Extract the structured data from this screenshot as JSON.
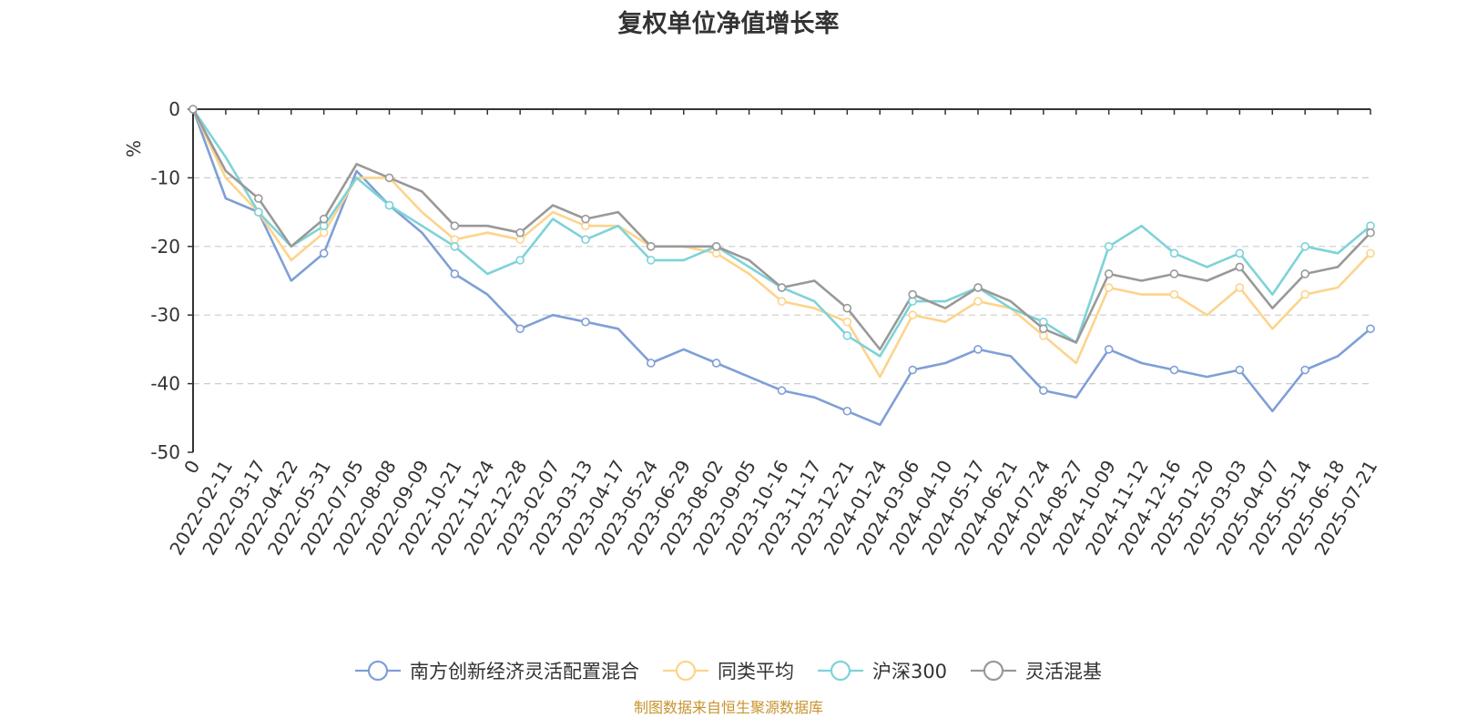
{
  "title": "复权单位净值增长率",
  "source_note": "制图数据来自恒生聚源数据库",
  "chart_data": {
    "type": "line",
    "title": "复权单位净值增长率",
    "ylabel": "%",
    "ylim": [
      -50,
      0
    ],
    "yticks": [
      0,
      -10,
      -20,
      -30,
      -40,
      -50
    ],
    "grid": "horizontal dashed",
    "legend_position": "bottom",
    "x_tick_labels": [
      "0",
      "2022-02-11",
      "2022-03-17",
      "2022-04-22",
      "2022-05-31",
      "2022-07-05",
      "2022-08-08",
      "2022-09-09",
      "2022-10-21",
      "2022-11-24",
      "2022-12-28",
      "2023-02-07",
      "2023-03-13",
      "2023-04-17",
      "2023-05-24",
      "2023-06-29",
      "2023-08-02",
      "2023-09-05",
      "2023-10-16",
      "2023-11-17",
      "2023-12-21",
      "2024-01-24",
      "2024-03-06",
      "2024-04-10",
      "2024-05-17",
      "2024-06-21",
      "2024-07-24",
      "2024-08-27",
      "2024-10-09",
      "2024-11-12",
      "2024-12-16",
      "2025-01-20",
      "2025-03-03",
      "2025-04-07",
      "2025-05-14",
      "2025-06-18",
      "2025-07-21"
    ],
    "x": [
      0,
      1,
      2,
      3,
      4,
      5,
      6,
      7,
      8,
      9,
      10,
      11,
      12,
      13,
      14,
      15,
      16,
      17,
      18,
      19,
      20,
      21,
      22,
      23,
      24,
      25,
      26,
      27,
      28,
      29,
      30,
      31,
      32,
      33,
      34,
      35,
      36
    ],
    "series": [
      {
        "name": "南方创新经济灵活配置混合",
        "color": "#7f9fd6",
        "values": [
          0,
          -13,
          -15,
          -25,
          -21,
          -9,
          -14,
          -18,
          -24,
          -27,
          -32,
          -30,
          -31,
          -32,
          -37,
          -35,
          -37,
          -39,
          -41,
          -42,
          -44,
          -46,
          -38,
          -37,
          -35,
          -36,
          -41,
          -42,
          -35,
          -37,
          -38,
          -39,
          -38,
          -44,
          -38,
          -36,
          -32
        ]
      },
      {
        "name": "同类平均",
        "color": "#fcd48c",
        "values": [
          0,
          -10,
          -15,
          -22,
          -18,
          -10,
          -10,
          -15,
          -19,
          -18,
          -19,
          -15,
          -17,
          -17,
          -20,
          -20,
          -21,
          -24,
          -28,
          -29,
          -31,
          -39,
          -30,
          -31,
          -28,
          -29,
          -33,
          -37,
          -26,
          -27,
          -27,
          -30,
          -26,
          -32,
          -27,
          -26,
          -21
        ]
      },
      {
        "name": "沪深300",
        "color": "#7dd3d8",
        "values": [
          0,
          -7,
          -15,
          -20,
          -17,
          -10,
          -14,
          -17,
          -20,
          -24,
          -22,
          -16,
          -19,
          -17,
          -22,
          -22,
          -20,
          -23,
          -26,
          -28,
          -33,
          -36,
          -28,
          -28,
          -26,
          -29,
          -31,
          -34,
          -20,
          -17,
          -21,
          -23,
          -21,
          -27,
          -20,
          -21,
          -17
        ]
      },
      {
        "name": "灵活混基",
        "color": "#999999",
        "values": [
          0,
          -9,
          -13,
          -20,
          -16,
          -8,
          -10,
          -12,
          -17,
          -17,
          -18,
          -14,
          -16,
          -15,
          -20,
          -20,
          -20,
          -22,
          -26,
          -25,
          -29,
          -35,
          -27,
          -29,
          -26,
          -28,
          -32,
          -34,
          -24,
          -25,
          -24,
          -25,
          -23,
          -29,
          -24,
          -23,
          -18
        ]
      }
    ]
  }
}
